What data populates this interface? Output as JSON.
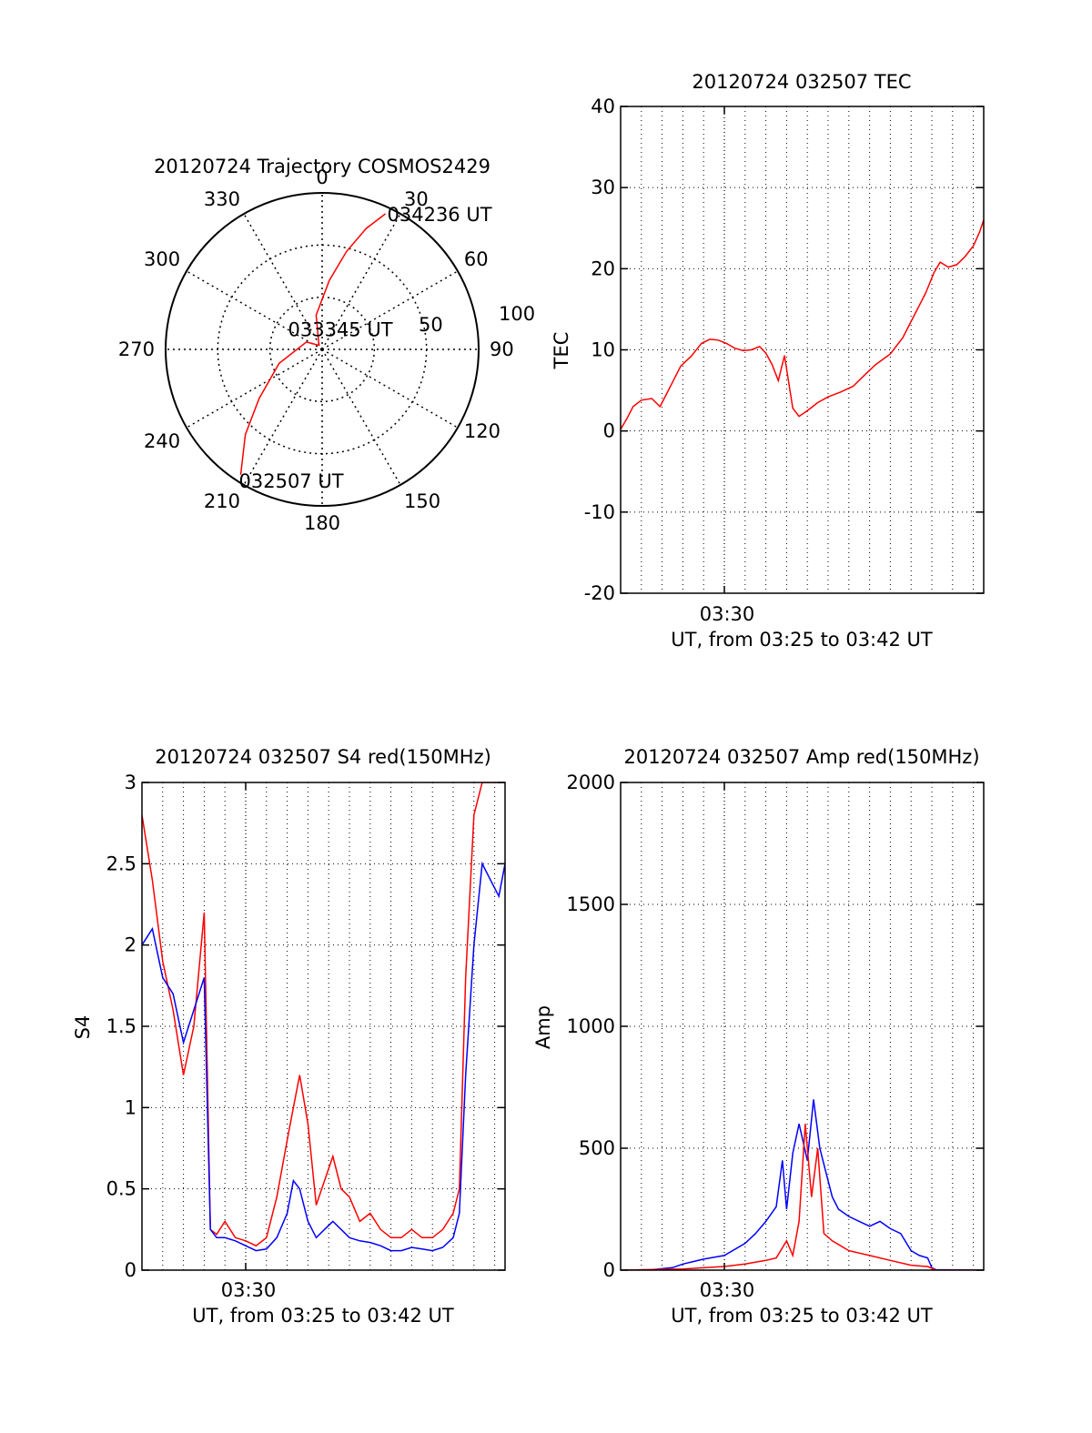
{
  "chart_data": [
    {
      "type": "polar",
      "title": "20120724 Trajectory COSMOS2429",
      "angle_ticks": [
        "0",
        "30",
        "60",
        "90",
        "120",
        "150",
        "180",
        "210",
        "240",
        "270",
        "300",
        "330"
      ],
      "angle_values": [
        0,
        30,
        60,
        90,
        120,
        150,
        180,
        210,
        240,
        270,
        300,
        330
      ],
      "radial_ticks": [
        "50",
        "100"
      ],
      "radial_values": [
        50,
        100
      ],
      "grid": true,
      "series": [
        {
          "color": "#ff0000",
          "points": [
            {
              "az": 213,
              "el": 4
            },
            {
              "az": 222,
              "el": 24
            },
            {
              "az": 232,
              "el": 44
            },
            {
              "az": 252,
              "el": 64
            },
            {
              "az": 295,
              "el": 80
            },
            {
              "az": 322,
              "el": 87
            },
            {
              "az": 350,
              "el": 70
            },
            {
              "az": 6,
              "el": 50
            },
            {
              "az": 14,
              "el": 32
            },
            {
              "az": 20,
              "el": 16
            },
            {
              "az": 25,
              "el": 4
            }
          ]
        }
      ],
      "annotations": [
        {
          "text": "034236 UT",
          "az": 25,
          "el": 4
        },
        {
          "text": "033345 UT",
          "az": 322,
          "el": 87
        },
        {
          "text": "032507 UT",
          "az": 213,
          "el": 4
        }
      ]
    },
    {
      "type": "line",
      "title": "20120724 032507 TEC",
      "xlabel": "UT, from 03:25 to 03:42 UT",
      "ylabel": "TEC",
      "x_tick_label": "03:30",
      "xlim": [
        "03:25:07",
        "03:42:36"
      ],
      "ylim": [
        -20,
        40
      ],
      "yticks": [
        "-20",
        "-10",
        "0",
        "10",
        "20",
        "30",
        "40"
      ],
      "ytick_values": [
        -20,
        -10,
        0,
        10,
        20,
        30,
        40
      ],
      "grid": true,
      "series": [
        {
          "color": "#ff0000",
          "x_minutes": [
            0,
            0.3,
            0.6,
            1.0,
            1.5,
            1.9,
            2.2,
            2.5,
            2.9,
            3.4,
            3.9,
            4.3,
            4.7,
            5.1,
            5.5,
            5.9,
            6.3,
            6.7,
            7.0,
            7.3,
            7.6,
            7.9,
            8.1,
            8.3,
            8.6,
            9.0,
            9.5,
            10.0,
            10.6,
            11.2,
            11.8,
            12.3,
            13.0,
            13.6,
            14.2,
            14.7,
            15.1,
            15.4,
            15.8,
            16.2,
            16.6,
            17.0,
            17.3,
            17.5
          ],
          "values": [
            0.2,
            1.5,
            3.0,
            3.8,
            4.0,
            3.0,
            4.5,
            6.0,
            8.0,
            9.2,
            10.8,
            11.3,
            11.2,
            10.8,
            10.2,
            9.9,
            10.0,
            10.4,
            9.6,
            8.2,
            6.2,
            9.3,
            6.0,
            2.8,
            1.8,
            2.5,
            3.5,
            4.2,
            4.8,
            5.5,
            7.0,
            8.2,
            9.5,
            11.5,
            14.5,
            17.0,
            19.5,
            20.8,
            20.2,
            20.5,
            21.5,
            22.8,
            24.5,
            26.0
          ]
        }
      ]
    },
    {
      "type": "line",
      "title": "20120724 032507 S4 red(150MHz)",
      "xlabel": "UT, from 03:25 to 03:42 UT",
      "ylabel": "S4",
      "x_tick_label": "03:30",
      "xlim": [
        "03:25:07",
        "03:42:36"
      ],
      "ylim": [
        0,
        3
      ],
      "yticks": [
        "0",
        "0.5",
        "1",
        "1.5",
        "2",
        "2.5",
        "3"
      ],
      "ytick_values": [
        0,
        0.5,
        1,
        1.5,
        2,
        2.5,
        3
      ],
      "grid": true,
      "series": [
        {
          "color": "#ff0000",
          "x_minutes": [
            0,
            0.5,
            1.0,
            1.5,
            2.0,
            2.5,
            3.0,
            3.3,
            3.6,
            4.0,
            4.5,
            5.0,
            5.5,
            6.0,
            6.5,
            7.0,
            7.3,
            7.6,
            8.0,
            8.4,
            8.8,
            9.2,
            9.6,
            10.0,
            10.5,
            11.0,
            11.5,
            12.0,
            12.5,
            13.0,
            13.5,
            14.0,
            14.5,
            15.0,
            15.3,
            15.6,
            16.0,
            16.4,
            16.8,
            17.2,
            17.5
          ],
          "values": [
            2.8,
            2.4,
            1.9,
            1.6,
            1.2,
            1.5,
            2.2,
            0.25,
            0.22,
            0.3,
            0.2,
            0.18,
            0.15,
            0.2,
            0.45,
            0.8,
            1.0,
            1.2,
            0.9,
            0.4,
            0.55,
            0.7,
            0.5,
            0.45,
            0.3,
            0.35,
            0.25,
            0.2,
            0.2,
            0.25,
            0.2,
            0.2,
            0.25,
            0.35,
            0.5,
            1.8,
            2.8,
            3.0,
            3.0,
            3.0,
            3.0
          ]
        },
        {
          "color": "#0000ff",
          "x_minutes": [
            0,
            0.5,
            1.0,
            1.5,
            2.0,
            2.5,
            3.0,
            3.3,
            3.6,
            4.0,
            4.5,
            5.0,
            5.5,
            6.0,
            6.5,
            7.0,
            7.3,
            7.6,
            8.0,
            8.4,
            8.8,
            9.2,
            9.6,
            10.0,
            10.5,
            11.0,
            11.5,
            12.0,
            12.5,
            13.0,
            13.5,
            14.0,
            14.5,
            15.0,
            15.3,
            15.6,
            16.0,
            16.4,
            16.8,
            17.2,
            17.5
          ],
          "values": [
            2.0,
            2.1,
            1.8,
            1.7,
            1.4,
            1.6,
            1.8,
            0.25,
            0.2,
            0.2,
            0.18,
            0.15,
            0.12,
            0.13,
            0.2,
            0.35,
            0.55,
            0.5,
            0.3,
            0.2,
            0.25,
            0.3,
            0.25,
            0.2,
            0.18,
            0.17,
            0.15,
            0.12,
            0.12,
            0.14,
            0.13,
            0.12,
            0.14,
            0.2,
            0.35,
            1.2,
            2.0,
            2.5,
            2.4,
            2.3,
            2.5
          ]
        }
      ]
    },
    {
      "type": "line",
      "title": "20120724 032507 Amp red(150MHz)",
      "xlabel": "UT, from 03:25 to 03:42 UT",
      "ylabel": "Amp",
      "x_tick_label": "03:30",
      "xlim": [
        "03:25:07",
        "03:42:36"
      ],
      "ylim": [
        0,
        2000
      ],
      "yticks": [
        "0",
        "500",
        "1000",
        "1500",
        "2000"
      ],
      "ytick_values": [
        0,
        500,
        1000,
        1500,
        2000
      ],
      "grid": true,
      "series": [
        {
          "color": "#0000ff",
          "x_minutes": [
            0,
            1.5,
            2.5,
            3.0,
            4.0,
            5.0,
            6.0,
            6.5,
            7.0,
            7.5,
            7.8,
            8.0,
            8.3,
            8.6,
            9.0,
            9.3,
            9.6,
            9.9,
            10.2,
            10.5,
            11.0,
            11.5,
            12.0,
            12.5,
            13.0,
            13.5,
            14.0,
            14.4,
            14.8,
            15.0,
            15.2,
            17.5
          ],
          "values": [
            0,
            2,
            10,
            25,
            45,
            60,
            110,
            150,
            200,
            260,
            450,
            250,
            480,
            600,
            450,
            700,
            500,
            400,
            300,
            250,
            220,
            200,
            180,
            200,
            170,
            150,
            80,
            60,
            50,
            10,
            2,
            0
          ]
        },
        {
          "color": "#ff0000",
          "x_minutes": [
            0,
            3.0,
            5.0,
            6.0,
            7.0,
            7.5,
            8.0,
            8.3,
            8.6,
            8.9,
            9.2,
            9.5,
            9.8,
            10.2,
            10.6,
            11.0,
            12.0,
            13.0,
            14.0,
            14.8,
            15.2,
            17.5
          ],
          "values": [
            0,
            5,
            15,
            25,
            40,
            50,
            120,
            60,
            200,
            600,
            300,
            500,
            150,
            120,
            100,
            80,
            60,
            40,
            20,
            15,
            0,
            0
          ]
        }
      ]
    }
  ]
}
